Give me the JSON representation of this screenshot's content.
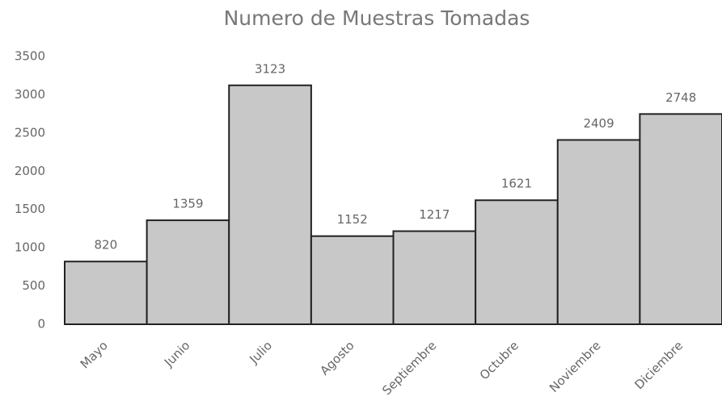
{
  "chart_data": {
    "type": "bar",
    "title": "Numero de Muestras Tomadas",
    "categories": [
      "Mayo",
      "Junio",
      "Julio",
      "Agosto",
      "Septiembre",
      "Octubre",
      "Noviembre",
      "Diciembre"
    ],
    "values": [
      820,
      1359,
      3123,
      1152,
      1217,
      1621,
      2409,
      2748
    ],
    "color": "#c8c8c8",
    "ylim": [
      0,
      3500
    ],
    "yticks": [
      0,
      500,
      1000,
      1500,
      2000,
      2500,
      3000,
      3500
    ],
    "grid": false
  }
}
